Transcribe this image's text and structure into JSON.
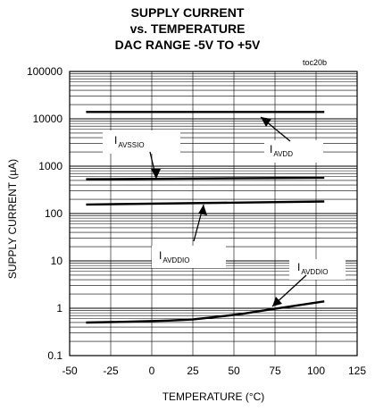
{
  "chart_data": {
    "type": "line",
    "title_lines": [
      "SUPPLY CURRENT",
      "vs. TEMPERATURE",
      "DAC RANGE -5V TO +5V"
    ],
    "note": "toc20b",
    "xlabel": "TEMPERATURE (°C)",
    "ylabel": "SUPPLY CURRENT (µA)",
    "x_scale": "linear",
    "y_scale": "log",
    "xlim": [
      -50,
      125
    ],
    "ylim": [
      0.1,
      100000
    ],
    "x_ticks": [
      "-50",
      "-25",
      "0",
      "25",
      "50",
      "75",
      "100",
      "125"
    ],
    "x_tick_values": [
      -50,
      -25,
      0,
      25,
      50,
      75,
      100,
      125
    ],
    "y_ticks": [
      "0.1",
      "1",
      "10",
      "100",
      "1000",
      "10000",
      "100000"
    ],
    "y_tick_values": [
      0.1,
      1,
      10,
      100,
      1000,
      10000,
      100000
    ],
    "grid": true,
    "series": [
      {
        "name": "IAVDD",
        "x": [
          -40,
          105
        ],
        "y": [
          14000,
          14000
        ]
      },
      {
        "name": "IAVSSIO",
        "x": [
          -40,
          105
        ],
        "y": [
          530,
          570
        ]
      },
      {
        "name": "IAVDDIO",
        "x": [
          -40,
          105
        ],
        "y": [
          155,
          180
        ]
      },
      {
        "name": "IAVDDIO",
        "x": [
          -40,
          -15,
          10,
          25,
          40,
          55,
          70,
          85,
          105
        ],
        "y": [
          0.5,
          0.52,
          0.55,
          0.58,
          0.66,
          0.76,
          0.92,
          1.1,
          1.4
        ]
      }
    ],
    "annotations": [
      {
        "main": "I",
        "sub": "AVDD"
      },
      {
        "main": "I",
        "sub": "AVSSIO"
      },
      {
        "main": "I",
        "sub": "AVDDIO"
      },
      {
        "main": "I",
        "sub": "AVDDIO"
      }
    ]
  }
}
